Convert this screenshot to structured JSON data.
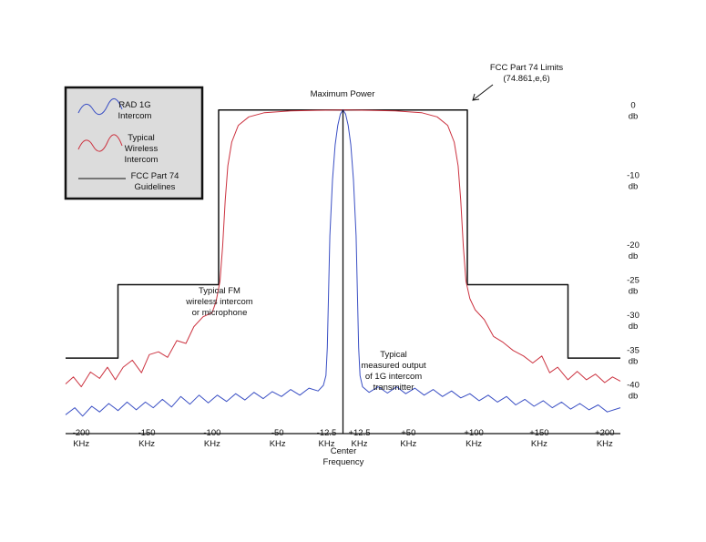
{
  "chart_data": {
    "type": "line",
    "x_ticks": [
      {
        "value": -200,
        "line1": "-200",
        "line2": "KHz"
      },
      {
        "value": -150,
        "line1": "-150",
        "line2": "KHz"
      },
      {
        "value": -100,
        "line1": "-100",
        "line2": "KHz"
      },
      {
        "value": -50,
        "line1": "-50",
        "line2": "KHz"
      },
      {
        "value": -12.5,
        "line1": "-12.5",
        "line2": "KHz"
      },
      {
        "value": 12.5,
        "line1": "+12.5",
        "line2": "KHz"
      },
      {
        "value": 50,
        "line1": "+50",
        "line2": "KHz"
      },
      {
        "value": 100,
        "line1": "+100",
        "line2": "KHz"
      },
      {
        "value": 150,
        "line1": "+150",
        "line2": "KHz"
      },
      {
        "value": 200,
        "line1": "+200",
        "line2": "KHz"
      }
    ],
    "center_label": [
      "Center",
      "Frequency"
    ],
    "y_ticks": [
      {
        "value": 0,
        "line1": "0",
        "line2": "db"
      },
      {
        "value": -10,
        "line1": "-10",
        "line2": "db"
      },
      {
        "value": -20,
        "line1": "-20",
        "line2": "db"
      },
      {
        "value": -25,
        "line1": "-25",
        "line2": "db"
      },
      {
        "value": -30,
        "line1": "-30",
        "line2": "db"
      },
      {
        "value": -35,
        "line1": "-35",
        "line2": "db"
      },
      {
        "value": -40,
        "line1": "-40",
        "line2": "db"
      }
    ],
    "xlim": [
      -212,
      212
    ],
    "ylim": [
      -45,
      1
    ],
    "legend": {
      "position": "top-left",
      "items": [
        {
          "lines": [
            "RAD 1G",
            "Intercom"
          ],
          "color": "#3a4fc4",
          "style": "wave"
        },
        {
          "lines": [
            "Typical",
            "Wireless",
            "Intercom"
          ],
          "color": "#cc3340",
          "style": "wave"
        },
        {
          "lines": [
            "FCC Part 74",
            "Guidelines"
          ],
          "color": "#111111",
          "style": "line"
        }
      ]
    },
    "annotations": {
      "max_power": "Maximum Power",
      "fcc_limits": [
        "FCC Part 74 Limits",
        "(74.861,e,6)"
      ],
      "fm_label": [
        "Typical FM",
        "wireless intercom",
        "or microphone"
      ],
      "rad_label": [
        "Typical",
        "measured output",
        "of 1G  intercom",
        "transmitter"
      ]
    },
    "series": [
      {
        "name": "FCC Part 74 Guidelines",
        "color": "#111111",
        "points": [
          [
            -212,
            -35.5
          ],
          [
            -172,
            -35.5
          ],
          [
            -172,
            -25
          ],
          [
            -95,
            -25
          ],
          [
            -95,
            0
          ],
          [
            95,
            0
          ],
          [
            95,
            -25
          ],
          [
            172,
            -25
          ],
          [
            172,
            -35.5
          ],
          [
            212,
            -35.5
          ]
        ]
      },
      {
        "name": "Typical Wireless Intercom",
        "color": "#cc3340",
        "points": [
          [
            -212,
            -39.2
          ],
          [
            -206,
            -38.2
          ],
          [
            -200,
            -39.6
          ],
          [
            -193,
            -37.5
          ],
          [
            -186,
            -38.4
          ],
          [
            -180,
            -36.8
          ],
          [
            -174,
            -38.6
          ],
          [
            -168,
            -36.8
          ],
          [
            -161,
            -35.8
          ],
          [
            -154,
            -37.6
          ],
          [
            -148,
            -35.0
          ],
          [
            -141,
            -34.6
          ],
          [
            -134,
            -35.4
          ],
          [
            -127,
            -33.0
          ],
          [
            -120,
            -33.4
          ],
          [
            -114,
            -31.0
          ],
          [
            -107,
            -29.6
          ],
          [
            -100,
            -29.0
          ],
          [
            -97,
            -27.4
          ],
          [
            -94,
            -24.5
          ],
          [
            -92,
            -19.5
          ],
          [
            -90,
            -13.0
          ],
          [
            -88,
            -8.0
          ],
          [
            -85,
            -4.6
          ],
          [
            -80,
            -2.2
          ],
          [
            -72,
            -1.0
          ],
          [
            -60,
            -0.4
          ],
          [
            -40,
            -0.15
          ],
          [
            -20,
            -0.05
          ],
          [
            0,
            0
          ],
          [
            20,
            -0.05
          ],
          [
            40,
            -0.15
          ],
          [
            60,
            -0.4
          ],
          [
            72,
            -1.0
          ],
          [
            80,
            -2.2
          ],
          [
            85,
            -4.6
          ],
          [
            88,
            -8.0
          ],
          [
            90,
            -13.0
          ],
          [
            92,
            -19.5
          ],
          [
            94,
            -24.5
          ],
          [
            97,
            -27.0
          ],
          [
            101,
            -28.6
          ],
          [
            108,
            -30.0
          ],
          [
            115,
            -32.4
          ],
          [
            122,
            -33.2
          ],
          [
            130,
            -34.4
          ],
          [
            138,
            -35.2
          ],
          [
            145,
            -36.2
          ],
          [
            152,
            -35.2
          ],
          [
            158,
            -37.6
          ],
          [
            164,
            -36.8
          ],
          [
            172,
            -38.6
          ],
          [
            179,
            -37.4
          ],
          [
            186,
            -38.6
          ],
          [
            193,
            -37.8
          ],
          [
            200,
            -39.0
          ],
          [
            206,
            -38.2
          ],
          [
            212,
            -38.8
          ]
        ]
      },
      {
        "name": "RAD 1G Intercom",
        "color": "#3a4fc4",
        "points": [
          [
            -212,
            -43.6
          ],
          [
            -205,
            -42.6
          ],
          [
            -199,
            -43.8
          ],
          [
            -192,
            -42.4
          ],
          [
            -186,
            -43.2
          ],
          [
            -179,
            -42.0
          ],
          [
            -172,
            -43.0
          ],
          [
            -165,
            -41.8
          ],
          [
            -158,
            -42.9
          ],
          [
            -151,
            -41.8
          ],
          [
            -145,
            -42.6
          ],
          [
            -138,
            -41.4
          ],
          [
            -131,
            -42.5
          ],
          [
            -124,
            -41.0
          ],
          [
            -117,
            -42.1
          ],
          [
            -110,
            -40.8
          ],
          [
            -103,
            -41.9
          ],
          [
            -96,
            -40.8
          ],
          [
            -89,
            -41.7
          ],
          [
            -82,
            -40.6
          ],
          [
            -75,
            -41.5
          ],
          [
            -68,
            -40.4
          ],
          [
            -61,
            -41.3
          ],
          [
            -54,
            -40.3
          ],
          [
            -47,
            -41.0
          ],
          [
            -40,
            -40.0
          ],
          [
            -33,
            -40.8
          ],
          [
            -26,
            -39.8
          ],
          [
            -19,
            -40.2
          ],
          [
            -15,
            -39.4
          ],
          [
            -13,
            -38.0
          ],
          [
            -12,
            -34.0
          ],
          [
            -11,
            -26.0
          ],
          [
            -10,
            -18.0
          ],
          [
            -8,
            -10.0
          ],
          [
            -6,
            -5.0
          ],
          [
            -4,
            -2.2
          ],
          [
            -2,
            -0.6
          ],
          [
            0,
            0
          ],
          [
            2,
            -0.6
          ],
          [
            4,
            -2.2
          ],
          [
            6,
            -5.0
          ],
          [
            8,
            -10.0
          ],
          [
            10,
            -18.0
          ],
          [
            11,
            -26.0
          ],
          [
            12,
            -34.0
          ],
          [
            13,
            -38.0
          ],
          [
            15,
            -39.6
          ],
          [
            20,
            -40.4
          ],
          [
            27,
            -39.6
          ],
          [
            34,
            -40.5
          ],
          [
            41,
            -39.6
          ],
          [
            48,
            -40.6
          ],
          [
            55,
            -39.8
          ],
          [
            62,
            -40.8
          ],
          [
            69,
            -40.0
          ],
          [
            76,
            -41.0
          ],
          [
            83,
            -40.2
          ],
          [
            90,
            -41.2
          ],
          [
            97,
            -40.6
          ],
          [
            104,
            -41.6
          ],
          [
            111,
            -40.8
          ],
          [
            118,
            -41.8
          ],
          [
            125,
            -41.0
          ],
          [
            132,
            -42.2
          ],
          [
            139,
            -41.4
          ],
          [
            146,
            -42.4
          ],
          [
            153,
            -41.6
          ],
          [
            160,
            -42.6
          ],
          [
            167,
            -41.8
          ],
          [
            174,
            -42.8
          ],
          [
            181,
            -42.0
          ],
          [
            188,
            -42.9
          ],
          [
            195,
            -42.2
          ],
          [
            202,
            -43.2
          ],
          [
            212,
            -42.6
          ]
        ]
      }
    ]
  }
}
